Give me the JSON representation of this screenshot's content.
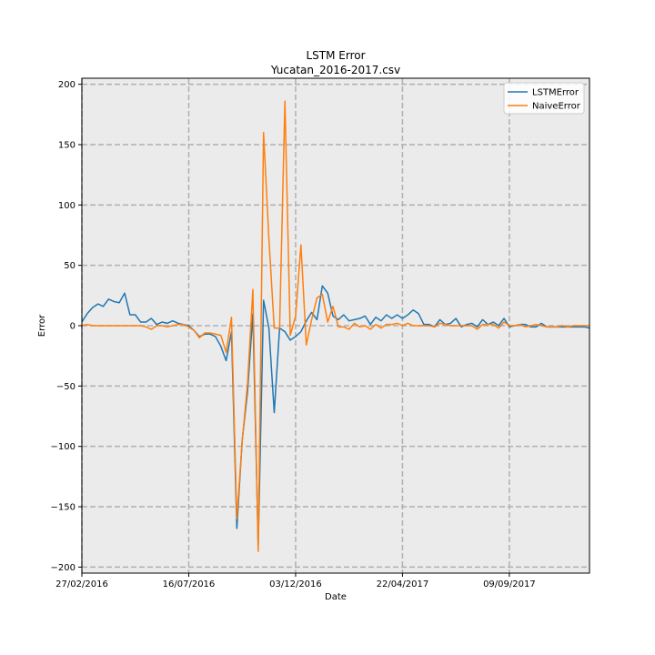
{
  "chart_data": {
    "type": "line",
    "title": "LSTM Error",
    "subtitle": "Yucatan_2016-2017.csv",
    "xlabel": "Date",
    "ylabel": "Error",
    "ylim": [
      -205,
      205
    ],
    "yticks": [
      -200,
      -150,
      -100,
      -50,
      0,
      50,
      100,
      150,
      200
    ],
    "ytick_labels": [
      "−200",
      "−150",
      "−100",
      "−50",
      "0",
      "50",
      "100",
      "150",
      "200"
    ],
    "xlim": [
      0,
      95
    ],
    "xticks": [
      0,
      20,
      40,
      60,
      80
    ],
    "xtick_labels": [
      "27/02/2016",
      "16/07/2016",
      "03/12/2016",
      "22/04/2017",
      "09/09/2017"
    ],
    "grid": true,
    "legend_position": "top-right",
    "background_color": "#ebebeb",
    "series": [
      {
        "name": "LSTMError",
        "color": "#1f77b4",
        "x": [
          0,
          1,
          2,
          3,
          4,
          5,
          6,
          7,
          8,
          9,
          10,
          11,
          12,
          13,
          14,
          15,
          16,
          17,
          18,
          19,
          20,
          21,
          22,
          23,
          24,
          25,
          26,
          27,
          28,
          29,
          30,
          31,
          32,
          33,
          34,
          35,
          36,
          37,
          38,
          39,
          40,
          41,
          42,
          43,
          44,
          45,
          46,
          47,
          48,
          49,
          50,
          51,
          52,
          53,
          54,
          55,
          56,
          57,
          58,
          59,
          60,
          61,
          62,
          63,
          64,
          65,
          66,
          67,
          68,
          69,
          70,
          71,
          72,
          73,
          74,
          75,
          76,
          77,
          78,
          79,
          80,
          81,
          82,
          83,
          84,
          85,
          86,
          87,
          88,
          89,
          90,
          91,
          92,
          93,
          94,
          95
        ],
        "values": [
          3,
          10,
          15,
          18,
          16,
          22,
          20,
          19,
          27,
          9,
          9,
          3,
          3,
          6,
          1,
          3,
          2,
          4,
          2,
          1,
          0,
          -4,
          -9,
          -7,
          -7,
          -9,
          -17,
          -29,
          -5,
          -168,
          -95,
          -55,
          10,
          -182,
          21,
          -2,
          -72,
          -2,
          -5,
          -12,
          -9,
          -5,
          4,
          11,
          5,
          33,
          27,
          8,
          5,
          9,
          4,
          5,
          6,
          8,
          1,
          7,
          4,
          9,
          6,
          9,
          6,
          9,
          13,
          10,
          1,
          1,
          -1,
          5,
          1,
          2,
          6,
          -1,
          1,
          2,
          -1,
          5,
          1,
          3,
          0,
          6,
          -1,
          0,
          1,
          1,
          -1,
          -1,
          2,
          -1,
          -1,
          -1,
          -1,
          -1,
          -1,
          -1,
          -1,
          -2
        ]
      },
      {
        "name": "NaiveError",
        "color": "#ff7f0e",
        "x": [
          0,
          1,
          2,
          3,
          4,
          5,
          6,
          7,
          8,
          9,
          10,
          11,
          12,
          13,
          14,
          15,
          16,
          17,
          18,
          19,
          20,
          21,
          22,
          23,
          24,
          25,
          26,
          27,
          28,
          29,
          30,
          31,
          32,
          33,
          34,
          35,
          36,
          37,
          38,
          39,
          40,
          41,
          42,
          43,
          44,
          45,
          46,
          47,
          48,
          49,
          50,
          51,
          52,
          53,
          54,
          55,
          56,
          57,
          58,
          59,
          60,
          61,
          62,
          63,
          64,
          65,
          66,
          67,
          68,
          69,
          70,
          71,
          72,
          73,
          74,
          75,
          76,
          77,
          78,
          79,
          80,
          81,
          82,
          83,
          84,
          85,
          86,
          87,
          88,
          89,
          90,
          91,
          92,
          93,
          94,
          95
        ],
        "values": [
          0,
          1,
          0,
          0,
          0,
          0,
          0,
          0,
          0,
          0,
          0,
          0,
          -1,
          -3,
          0,
          0,
          -1,
          0,
          1,
          1,
          -1,
          -4,
          -10,
          -6,
          -6,
          -7,
          -8,
          -22,
          7,
          -160,
          -96,
          -48,
          30,
          -187,
          160,
          72,
          -2,
          -2,
          186,
          -8,
          8,
          67,
          -16,
          5,
          23,
          26,
          3,
          16,
          -1,
          -1,
          -3,
          2,
          -1,
          0,
          -3,
          1,
          -2,
          1,
          1,
          2,
          0,
          2,
          0,
          0,
          0,
          0,
          -1,
          2,
          1,
          0,
          0,
          0,
          0,
          0,
          -3,
          1,
          1,
          1,
          -2,
          3,
          0,
          0,
          1,
          -1,
          0,
          1,
          0,
          -1,
          -1,
          -1,
          0,
          -1,
          0,
          0,
          0,
          0
        ]
      }
    ]
  }
}
